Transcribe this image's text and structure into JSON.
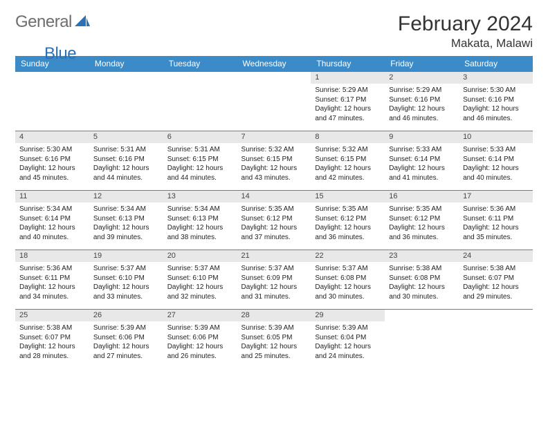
{
  "logo": {
    "text_general": "General",
    "text_blue": "Blue",
    "shape_color": "#2a72b5"
  },
  "title": {
    "month": "February 2024",
    "location": "Makata, Malawi"
  },
  "colors": {
    "header_bg": "#3b8bc8",
    "header_text": "#ffffff",
    "daynum_bg": "#e8e8e8",
    "row_border": "#3b8bc8"
  },
  "dow": [
    "Sunday",
    "Monday",
    "Tuesday",
    "Wednesday",
    "Thursday",
    "Friday",
    "Saturday"
  ],
  "weeks": [
    [
      {
        "blank": true
      },
      {
        "blank": true
      },
      {
        "blank": true
      },
      {
        "blank": true
      },
      {
        "day": "1",
        "sunrise": "Sunrise: 5:29 AM",
        "sunset": "Sunset: 6:17 PM",
        "daylight1": "Daylight: 12 hours",
        "daylight2": "and 47 minutes."
      },
      {
        "day": "2",
        "sunrise": "Sunrise: 5:29 AM",
        "sunset": "Sunset: 6:16 PM",
        "daylight1": "Daylight: 12 hours",
        "daylight2": "and 46 minutes."
      },
      {
        "day": "3",
        "sunrise": "Sunrise: 5:30 AM",
        "sunset": "Sunset: 6:16 PM",
        "daylight1": "Daylight: 12 hours",
        "daylight2": "and 46 minutes."
      }
    ],
    [
      {
        "day": "4",
        "sunrise": "Sunrise: 5:30 AM",
        "sunset": "Sunset: 6:16 PM",
        "daylight1": "Daylight: 12 hours",
        "daylight2": "and 45 minutes."
      },
      {
        "day": "5",
        "sunrise": "Sunrise: 5:31 AM",
        "sunset": "Sunset: 6:16 PM",
        "daylight1": "Daylight: 12 hours",
        "daylight2": "and 44 minutes."
      },
      {
        "day": "6",
        "sunrise": "Sunrise: 5:31 AM",
        "sunset": "Sunset: 6:15 PM",
        "daylight1": "Daylight: 12 hours",
        "daylight2": "and 44 minutes."
      },
      {
        "day": "7",
        "sunrise": "Sunrise: 5:32 AM",
        "sunset": "Sunset: 6:15 PM",
        "daylight1": "Daylight: 12 hours",
        "daylight2": "and 43 minutes."
      },
      {
        "day": "8",
        "sunrise": "Sunrise: 5:32 AM",
        "sunset": "Sunset: 6:15 PM",
        "daylight1": "Daylight: 12 hours",
        "daylight2": "and 42 minutes."
      },
      {
        "day": "9",
        "sunrise": "Sunrise: 5:33 AM",
        "sunset": "Sunset: 6:14 PM",
        "daylight1": "Daylight: 12 hours",
        "daylight2": "and 41 minutes."
      },
      {
        "day": "10",
        "sunrise": "Sunrise: 5:33 AM",
        "sunset": "Sunset: 6:14 PM",
        "daylight1": "Daylight: 12 hours",
        "daylight2": "and 40 minutes."
      }
    ],
    [
      {
        "day": "11",
        "sunrise": "Sunrise: 5:34 AM",
        "sunset": "Sunset: 6:14 PM",
        "daylight1": "Daylight: 12 hours",
        "daylight2": "and 40 minutes."
      },
      {
        "day": "12",
        "sunrise": "Sunrise: 5:34 AM",
        "sunset": "Sunset: 6:13 PM",
        "daylight1": "Daylight: 12 hours",
        "daylight2": "and 39 minutes."
      },
      {
        "day": "13",
        "sunrise": "Sunrise: 5:34 AM",
        "sunset": "Sunset: 6:13 PM",
        "daylight1": "Daylight: 12 hours",
        "daylight2": "and 38 minutes."
      },
      {
        "day": "14",
        "sunrise": "Sunrise: 5:35 AM",
        "sunset": "Sunset: 6:12 PM",
        "daylight1": "Daylight: 12 hours",
        "daylight2": "and 37 minutes."
      },
      {
        "day": "15",
        "sunrise": "Sunrise: 5:35 AM",
        "sunset": "Sunset: 6:12 PM",
        "daylight1": "Daylight: 12 hours",
        "daylight2": "and 36 minutes."
      },
      {
        "day": "16",
        "sunrise": "Sunrise: 5:35 AM",
        "sunset": "Sunset: 6:12 PM",
        "daylight1": "Daylight: 12 hours",
        "daylight2": "and 36 minutes."
      },
      {
        "day": "17",
        "sunrise": "Sunrise: 5:36 AM",
        "sunset": "Sunset: 6:11 PM",
        "daylight1": "Daylight: 12 hours",
        "daylight2": "and 35 minutes."
      }
    ],
    [
      {
        "day": "18",
        "sunrise": "Sunrise: 5:36 AM",
        "sunset": "Sunset: 6:11 PM",
        "daylight1": "Daylight: 12 hours",
        "daylight2": "and 34 minutes."
      },
      {
        "day": "19",
        "sunrise": "Sunrise: 5:37 AM",
        "sunset": "Sunset: 6:10 PM",
        "daylight1": "Daylight: 12 hours",
        "daylight2": "and 33 minutes."
      },
      {
        "day": "20",
        "sunrise": "Sunrise: 5:37 AM",
        "sunset": "Sunset: 6:10 PM",
        "daylight1": "Daylight: 12 hours",
        "daylight2": "and 32 minutes."
      },
      {
        "day": "21",
        "sunrise": "Sunrise: 5:37 AM",
        "sunset": "Sunset: 6:09 PM",
        "daylight1": "Daylight: 12 hours",
        "daylight2": "and 31 minutes."
      },
      {
        "day": "22",
        "sunrise": "Sunrise: 5:37 AM",
        "sunset": "Sunset: 6:08 PM",
        "daylight1": "Daylight: 12 hours",
        "daylight2": "and 30 minutes."
      },
      {
        "day": "23",
        "sunrise": "Sunrise: 5:38 AM",
        "sunset": "Sunset: 6:08 PM",
        "daylight1": "Daylight: 12 hours",
        "daylight2": "and 30 minutes."
      },
      {
        "day": "24",
        "sunrise": "Sunrise: 5:38 AM",
        "sunset": "Sunset: 6:07 PM",
        "daylight1": "Daylight: 12 hours",
        "daylight2": "and 29 minutes."
      }
    ],
    [
      {
        "day": "25",
        "sunrise": "Sunrise: 5:38 AM",
        "sunset": "Sunset: 6:07 PM",
        "daylight1": "Daylight: 12 hours",
        "daylight2": "and 28 minutes."
      },
      {
        "day": "26",
        "sunrise": "Sunrise: 5:39 AM",
        "sunset": "Sunset: 6:06 PM",
        "daylight1": "Daylight: 12 hours",
        "daylight2": "and 27 minutes."
      },
      {
        "day": "27",
        "sunrise": "Sunrise: 5:39 AM",
        "sunset": "Sunset: 6:06 PM",
        "daylight1": "Daylight: 12 hours",
        "daylight2": "and 26 minutes."
      },
      {
        "day": "28",
        "sunrise": "Sunrise: 5:39 AM",
        "sunset": "Sunset: 6:05 PM",
        "daylight1": "Daylight: 12 hours",
        "daylight2": "and 25 minutes."
      },
      {
        "day": "29",
        "sunrise": "Sunrise: 5:39 AM",
        "sunset": "Sunset: 6:04 PM",
        "daylight1": "Daylight: 12 hours",
        "daylight2": "and 24 minutes."
      },
      {
        "blank": true
      },
      {
        "blank": true
      }
    ]
  ]
}
